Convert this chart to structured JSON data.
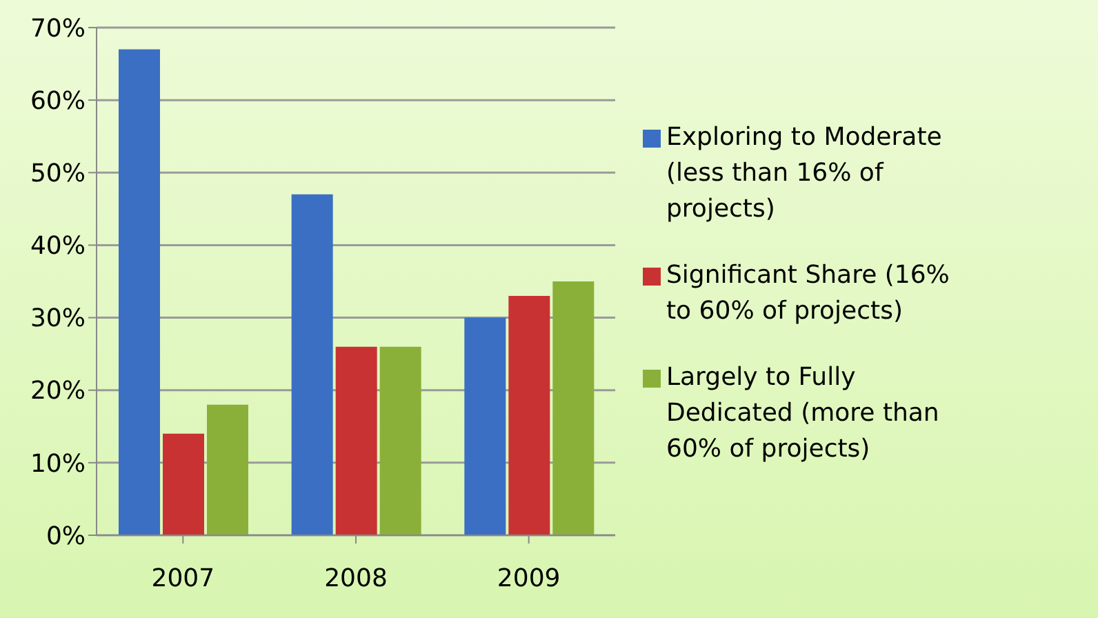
{
  "chart_data": {
    "type": "bar",
    "categories": [
      "2007",
      "2008",
      "2009"
    ],
    "series": [
      {
        "name": "Exploring to Moderate (less than 16% of projects)",
        "color": "#3a6fc4",
        "values": [
          67,
          47,
          30
        ]
      },
      {
        "name": "Significant Share (16% to 60% of projects)",
        "color": "#c83232",
        "values": [
          14,
          26,
          33
        ]
      },
      {
        "name": "Largely to Fully Dedicated (more than 60% of projects)",
        "color": "#8ab03a",
        "values": [
          18,
          26,
          35
        ]
      }
    ],
    "ylim": [
      0,
      70
    ],
    "yticks": [
      {
        "value": 0,
        "label": "0%"
      },
      {
        "value": 10,
        "label": "10%"
      },
      {
        "value": 20,
        "label": "20%"
      },
      {
        "value": 30,
        "label": "30%"
      },
      {
        "value": 40,
        "label": "40%"
      },
      {
        "value": 50,
        "label": "50%"
      },
      {
        "value": 60,
        "label": "60%"
      },
      {
        "value": 70,
        "label": "70%"
      }
    ],
    "grid": "y",
    "legend": "right"
  }
}
